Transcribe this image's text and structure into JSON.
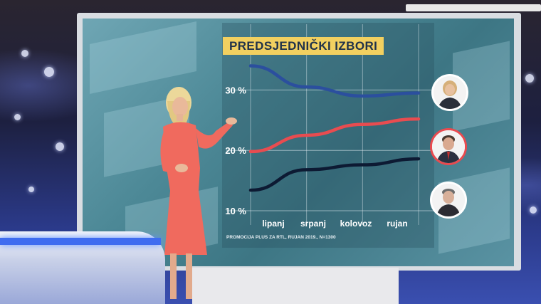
{
  "chart_data": {
    "type": "line",
    "title": "PREDSJEDNIČKI IZBORI",
    "categories": [
      "lipanj",
      "srpanj",
      "kolovoz",
      "rujan"
    ],
    "y_ticks": [
      "30 %",
      "20 %",
      "10 %"
    ],
    "y_tick_values": [
      30,
      20,
      10
    ],
    "ylim": [
      10,
      35
    ],
    "grid": true,
    "series": [
      {
        "color": "#2b4f9e",
        "values": [
          34.0,
          30.5,
          29.0,
          29.5
        ]
      },
      {
        "color": "#e84c50",
        "values": [
          19.8,
          22.5,
          24.3,
          25.2
        ]
      },
      {
        "color": "#0d1a33",
        "values": [
          13.4,
          16.8,
          17.6,
          18.6
        ]
      }
    ],
    "source_note": "PROMOCIJA PLUS ZA RTL, RUJAN 2019., N=1300"
  }
}
